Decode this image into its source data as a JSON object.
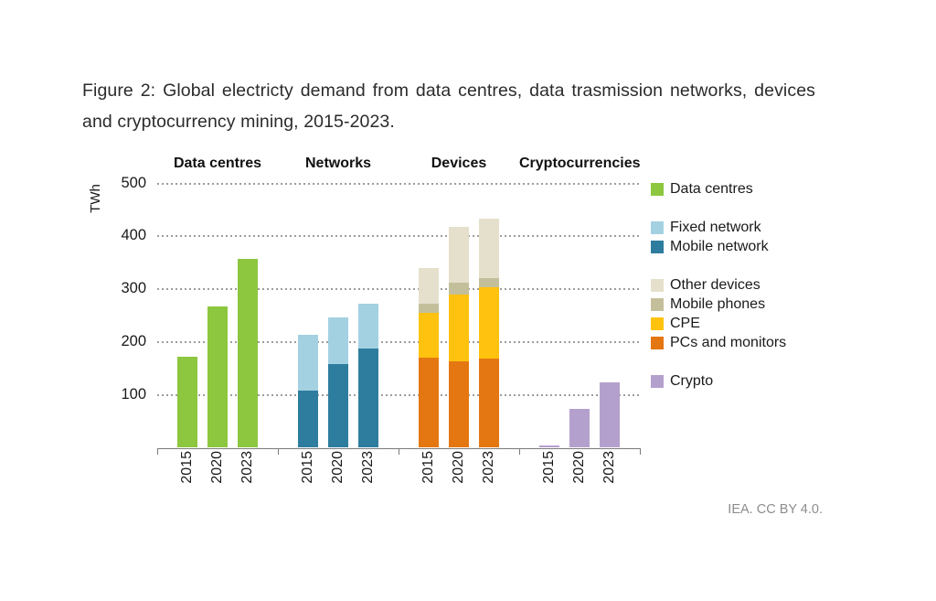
{
  "caption": "Figure 2: Global electricty demand from data centres, data trasmission networks, devices and cryptocurrency mining, 2015-2023.",
  "attribution": "IEA. CC BY 4.0.",
  "chart_data": {
    "type": "bar",
    "subtype": "grouped-stacked",
    "unit": "TWh",
    "ylabel": "TWh",
    "ylim": [
      0,
      500
    ],
    "yticks": [
      100,
      200,
      300,
      400,
      500
    ],
    "grid": "dotted-horizontal",
    "legend_position": "right",
    "years": [
      "2015",
      "2020",
      "2023"
    ],
    "groups": [
      {
        "name": "Data centres",
        "series": [
          {
            "name": "Data centres",
            "color": "#8DC63F",
            "values": [
              172,
              268,
              358
            ]
          }
        ]
      },
      {
        "name": "Networks",
        "series": [
          {
            "name": "Mobile network",
            "color": "#2E7D9E",
            "values": [
              108,
              158,
              188
            ]
          },
          {
            "name": "Fixed network",
            "color": "#A3D1E2",
            "values": [
              105,
              89,
              85
            ]
          }
        ]
      },
      {
        "name": "Devices",
        "series": [
          {
            "name": "PCs and monitors",
            "color": "#E47712",
            "values": [
              171,
              164,
              168
            ]
          },
          {
            "name": "CPE",
            "color": "#FFC20E",
            "values": [
              84,
              126,
              136
            ]
          },
          {
            "name": "Mobile phones",
            "color": "#C4BF9B",
            "values": [
              17,
              23,
              18
            ]
          },
          {
            "name": "Other devices",
            "color": "#E5E0CC",
            "values": [
              68,
              105,
              111
            ]
          }
        ]
      },
      {
        "name": "Cryptocurrencies",
        "series": [
          {
            "name": "Crypto",
            "color": "#B4A0CC",
            "values": [
              4,
              73,
              123
            ]
          }
        ]
      }
    ],
    "legend_groups": [
      {
        "items": [
          {
            "label": "Data centres",
            "color": "#8DC63F"
          }
        ]
      },
      {
        "items": [
          {
            "label": "Fixed network",
            "color": "#A3D1E2"
          },
          {
            "label": "Mobile network",
            "color": "#2E7D9E"
          }
        ]
      },
      {
        "items": [
          {
            "label": "Other devices",
            "color": "#E5E0CC"
          },
          {
            "label": "Mobile phones",
            "color": "#C4BF9B"
          },
          {
            "label": "CPE",
            "color": "#FFC20E"
          },
          {
            "label": "PCs and monitors",
            "color": "#E47712"
          }
        ]
      },
      {
        "items": [
          {
            "label": "Crypto",
            "color": "#B4A0CC"
          }
        ]
      }
    ]
  }
}
